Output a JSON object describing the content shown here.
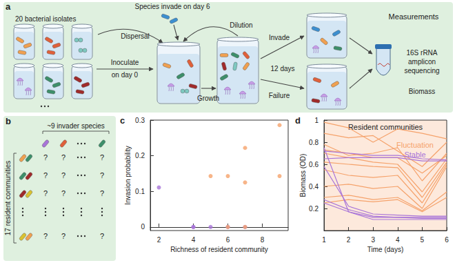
{
  "panel_a": {
    "label": "a",
    "isolates": "20 bacterial isolates",
    "invaders": "Species invade on day 6",
    "dispersal": "Dispersal",
    "dilution": "Dilution",
    "inoculate": [
      "Inoculate",
      "on day 0"
    ],
    "growth": "Growth",
    "invade": "Invade",
    "duration": "12 days",
    "failure": "Failure",
    "measurements": "Measurements",
    "sequencing": [
      "16S rRNA",
      "amplicon",
      "sequencing"
    ],
    "biomass": "Biomass"
  },
  "panel_b": {
    "label": "b",
    "invaders": "~9 invader species",
    "residents": "17 resident communities",
    "unknown": "?"
  },
  "chart_data": [
    {
      "panel": "c",
      "type": "scatter",
      "x_label": "Richness of resident community",
      "y_label": "Invasion probability",
      "xlim": [
        1.5,
        9.5
      ],
      "xticks": [
        2,
        4,
        6,
        8
      ],
      "ylim": [
        -0.01,
        0.3
      ],
      "yticks": [
        0,
        0.1,
        0.2,
        0.3
      ],
      "grid": false,
      "marker": "circle",
      "series": [
        {
          "color": "#a874d8",
          "x": [
            2,
            4,
            4,
            5,
            6,
            7
          ],
          "values": [
            0.111,
            0,
            0,
            0,
            0,
            0
          ]
        },
        {
          "color": "#f5a26b",
          "x": [
            6,
            7,
            5,
            6,
            7,
            7,
            9,
            9
          ],
          "values": [
            0,
            0,
            0.143,
            0.143,
            0.222,
            0.125,
            0.286,
            0.143
          ]
        }
      ]
    },
    {
      "panel": "d",
      "type": "line",
      "title": "Resident communities",
      "x_label": "Time (days)",
      "y_label": "Biomass (OD)",
      "annotations": [
        {
          "text": "Fluctuation",
          "color": "#f5a26b"
        },
        {
          "text": "Stable",
          "color": "#a874d8"
        }
      ],
      "x": [
        1,
        2,
        3,
        4,
        5,
        6
      ],
      "xlim": [
        1,
        6
      ],
      "xticks": [
        1,
        2,
        3,
        4,
        5,
        6
      ],
      "ylim": [
        0,
        1
      ],
      "yticks": [
        0.2,
        0.4,
        0.6,
        0.8,
        1
      ],
      "grid": false,
      "line_style": "solid",
      "series": [
        {
          "color": "#f5a26b",
          "values": [
            0.98,
            0.93,
            0.8,
            0.92,
            0.88,
            0.83
          ]
        },
        {
          "color": "#f5a26b",
          "values": [
            0.88,
            0.84,
            0.86,
            0.72,
            0.58,
            0.8
          ]
        },
        {
          "color": "#f5a26b",
          "values": [
            0.78,
            0.68,
            0.7,
            0.75,
            0.45,
            0.7
          ]
        },
        {
          "color": "#f5a26b",
          "values": [
            0.73,
            0.7,
            0.66,
            0.66,
            0.52,
            0.68
          ]
        },
        {
          "color": "#f5a26b",
          "values": [
            0.7,
            0.66,
            0.62,
            0.6,
            0.35,
            0.65
          ]
        },
        {
          "color": "#f5a26b",
          "values": [
            0.62,
            0.6,
            0.58,
            0.57,
            0.3,
            0.62
          ]
        },
        {
          "color": "#f5a26b",
          "values": [
            0.55,
            0.5,
            0.48,
            0.5,
            0.25,
            0.6
          ]
        },
        {
          "color": "#f5a26b",
          "values": [
            0.4,
            0.42,
            0.38,
            0.4,
            0.2,
            0.58
          ]
        },
        {
          "color": "#f5a26b",
          "values": [
            0.3,
            0.32,
            0.28,
            0.3,
            0.18,
            0.35
          ]
        },
        {
          "color": "#f5a26b",
          "values": [
            0.25,
            0.28,
            0.26,
            0.28,
            0.17,
            0.3
          ]
        },
        {
          "color": "#a874d8",
          "values": [
            0.72,
            0.7,
            0.68,
            0.68,
            0.65,
            0.64
          ]
        },
        {
          "color": "#a874d8",
          "values": [
            0.65,
            0.66,
            0.66,
            0.66,
            0.63,
            0.63
          ]
        },
        {
          "color": "#a874d8",
          "values": [
            0.75,
            0.17,
            0.12,
            0.12,
            0.12,
            0.12
          ]
        },
        {
          "color": "#a874d8",
          "values": [
            0.58,
            0.22,
            0.15,
            0.14,
            0.13,
            0.13
          ]
        },
        {
          "color": "#a874d8",
          "values": [
            0.28,
            0.19,
            0.13,
            0.12,
            0.11,
            0.11
          ]
        },
        {
          "color": "#a874d8",
          "values": [
            0.25,
            0.17,
            0.1,
            0.1,
            0.1,
            0.1
          ]
        }
      ]
    }
  ]
}
